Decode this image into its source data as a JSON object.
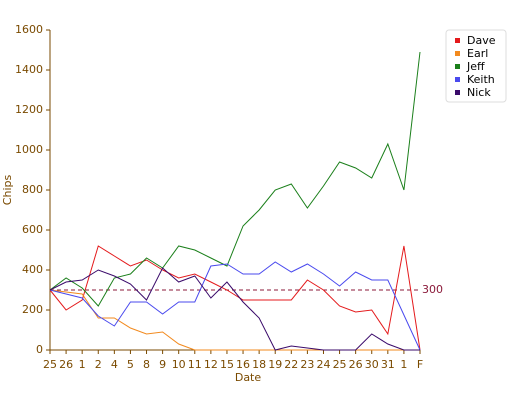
{
  "chart_data": {
    "type": "line",
    "x_label": "Date",
    "y_label": "Chips",
    "categories": [
      "25",
      "26",
      "1",
      "2",
      "4",
      "5",
      "8",
      "9",
      "10",
      "11",
      "12",
      "15",
      "16",
      "18",
      "19",
      "22",
      "23",
      "24",
      "25",
      "26",
      "30",
      "31",
      "1",
      "F"
    ],
    "series": [
      {
        "name": "Dave",
        "color": "#e41a1c",
        "values": [
          300,
          200,
          250,
          520,
          470,
          420,
          450,
          400,
          360,
          380,
          340,
          300,
          250,
          250,
          250,
          250,
          350,
          300,
          220,
          190,
          200,
          80,
          520,
          0
        ]
      },
      {
        "name": "Earl",
        "color": "#f28a1e",
        "values": [
          300,
          290,
          280,
          160,
          160,
          110,
          80,
          90,
          30,
          0,
          0,
          0,
          0,
          0,
          0,
          0,
          0,
          0,
          0,
          0,
          0,
          0,
          0,
          0
        ]
      },
      {
        "name": "Jeff",
        "color": "#1a7f1a",
        "values": [
          300,
          360,
          310,
          220,
          360,
          380,
          460,
          410,
          520,
          500,
          460,
          420,
          620,
          700,
          800,
          830,
          710,
          820,
          940,
          910,
          860,
          1030,
          800,
          1490
        ]
      },
      {
        "name": "Keith",
        "color": "#4a4aee",
        "values": [
          300,
          280,
          260,
          170,
          120,
          240,
          240,
          180,
          240,
          240,
          420,
          430,
          380,
          380,
          440,
          390,
          430,
          380,
          320,
          390,
          350,
          350,
          175,
          0
        ]
      },
      {
        "name": "Nick",
        "color": "#3a0a6a",
        "values": [
          300,
          340,
          350,
          400,
          370,
          330,
          250,
          410,
          340,
          370,
          260,
          340,
          240,
          160,
          0,
          20,
          10,
          0,
          0,
          0,
          80,
          30,
          0,
          0
        ]
      }
    ],
    "reference_line": 300,
    "reference_color": "#8b1a3a",
    "ylim": [
      0,
      1600
    ],
    "yticks": [
      0,
      200,
      400,
      600,
      800,
      1000,
      1200,
      1400,
      1600
    ],
    "legend": "top-right"
  }
}
